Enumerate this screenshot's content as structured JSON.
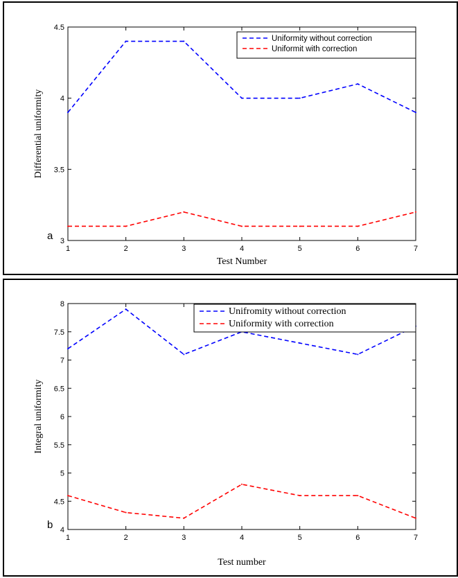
{
  "chart_data": [
    {
      "type": "line",
      "panel_letter": "a",
      "title": "",
      "xlabel": "Test Number",
      "ylabel": "Differential uniformity",
      "x": [
        1,
        2,
        3,
        4,
        5,
        6,
        7
      ],
      "xlim": [
        1,
        7
      ],
      "ylim": [
        3,
        4.5
      ],
      "xticks": [
        "1",
        "2",
        "3",
        "4",
        "5",
        "6",
        "7"
      ],
      "yticks": [
        3,
        3.5,
        4,
        4.5
      ],
      "ytick_labels": [
        "3",
        "3.5",
        "4",
        "4.5"
      ],
      "grid": false,
      "legend_placement": "top-right",
      "series": [
        {
          "name": "Uniformity without correction",
          "color": "#0000ff",
          "style": "dashed",
          "values": [
            3.9,
            4.4,
            4.4,
            4.0,
            4.0,
            4.1,
            3.9
          ]
        },
        {
          "name": "Uniformit with correction",
          "color": "#ff0000",
          "style": "dashed",
          "values": [
            3.1,
            3.1,
            3.2,
            3.1,
            3.1,
            3.1,
            3.2
          ]
        }
      ]
    },
    {
      "type": "line",
      "panel_letter": "b",
      "title": "",
      "xlabel": "Test number",
      "ylabel": "Integral uniformity",
      "x": [
        1,
        2,
        3,
        4,
        5,
        6,
        7
      ],
      "xlim": [
        1,
        7
      ],
      "ylim": [
        4,
        8
      ],
      "xticks": [
        "1",
        "2",
        "3",
        "4",
        "5",
        "6",
        "7"
      ],
      "yticks": [
        4,
        4.5,
        5,
        5.5,
        6,
        6.5,
        7,
        7.5,
        8
      ],
      "ytick_labels": [
        "4",
        "4.5",
        "5",
        "5.5",
        "6",
        "6.5",
        "7",
        "7.5",
        "8"
      ],
      "grid": false,
      "legend_placement": "top-right",
      "series": [
        {
          "name": "Unifromity without correction",
          "color": "#0000ff",
          "style": "dashed",
          "values": [
            7.2,
            7.9,
            7.1,
            7.5,
            7.3,
            7.1,
            7.6
          ]
        },
        {
          "name": "Uniformity with correction",
          "color": "#ff0000",
          "style": "dashed",
          "values": [
            4.6,
            4.3,
            4.2,
            4.8,
            4.6,
            4.6,
            4.2
          ]
        }
      ]
    }
  ]
}
